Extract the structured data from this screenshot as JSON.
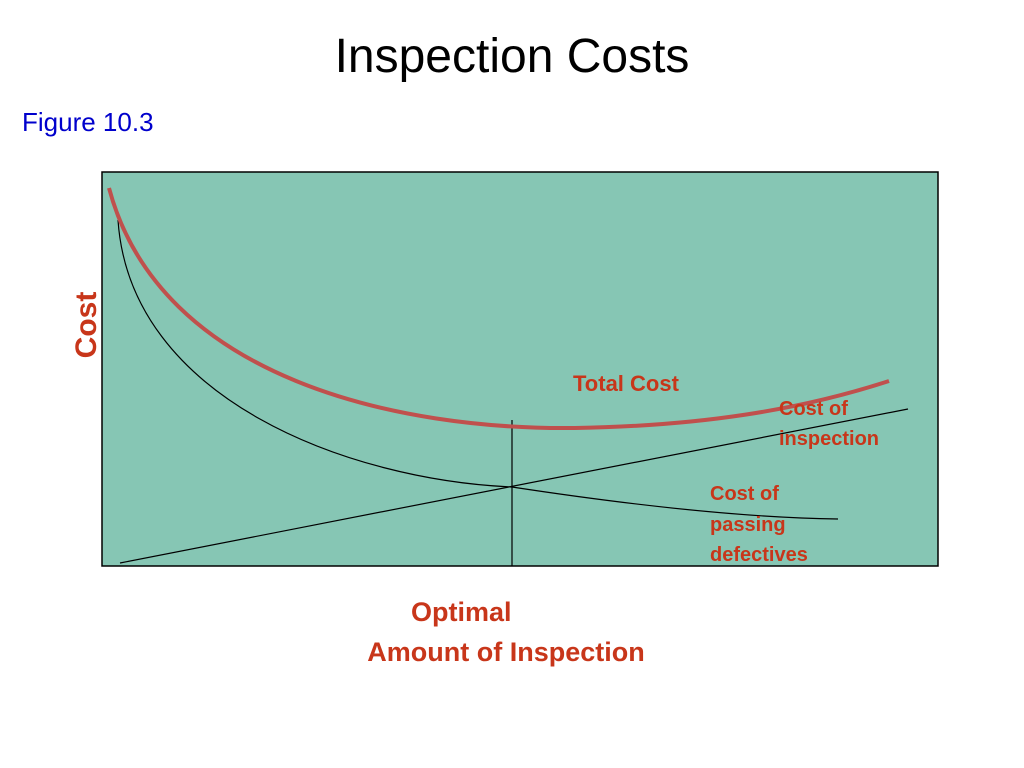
{
  "title": "Inspection Costs",
  "figure": "Figure 10.3",
  "axis": {
    "y": "Cost",
    "x_lines": [
      "Optimal",
      "Amount of Inspection"
    ]
  },
  "curves": [
    {
      "label_lines": [
        "Total Cost"
      ]
    },
    {
      "label_lines": [
        "Cost of",
        "inspection"
      ]
    },
    {
      "label_lines": [
        "Cost of",
        "passing",
        "defectives"
      ]
    }
  ]
}
